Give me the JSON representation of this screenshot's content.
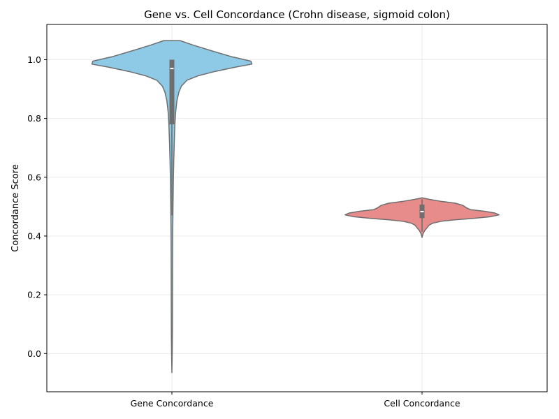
{
  "chart_data": {
    "type": "violin",
    "title": "Gene vs. Cell Concordance (Crohn disease, sigmoid colon)",
    "xlabel": "",
    "ylabel": "Concordance Score",
    "categories": [
      "Gene Concordance",
      "Cell Concordance"
    ],
    "ylim": [
      -0.13,
      1.12
    ],
    "yticks": [
      0.0,
      0.2,
      0.4,
      0.6,
      0.8,
      1.0
    ],
    "ytick_labels": [
      "0.0",
      "0.2",
      "0.4",
      "0.6",
      "0.8",
      "1.0"
    ],
    "grid": true,
    "series": [
      {
        "category": "Gene Concordance",
        "color": "#8ecae6",
        "kde_min": -0.065,
        "kde_max": 1.065,
        "median": 0.97,
        "q1": 0.78,
        "q3": 1.0,
        "whisker_low": 0.47,
        "whisker_high": 1.0,
        "density_profile": [
          [
            1.065,
            0.08
          ],
          [
            1.05,
            0.21
          ],
          [
            1.03,
            0.4
          ],
          [
            1.01,
            0.6
          ],
          [
            0.995,
            0.79
          ],
          [
            0.985,
            0.8
          ],
          [
            0.975,
            0.64
          ],
          [
            0.96,
            0.43
          ],
          [
            0.945,
            0.26
          ],
          [
            0.93,
            0.15
          ],
          [
            0.91,
            0.095
          ],
          [
            0.89,
            0.07
          ],
          [
            0.86,
            0.05
          ],
          [
            0.82,
            0.037
          ],
          [
            0.78,
            0.03
          ],
          [
            0.72,
            0.024
          ],
          [
            0.66,
            0.019
          ],
          [
            0.6,
            0.015
          ],
          [
            0.5,
            0.011
          ],
          [
            0.4,
            0.008
          ],
          [
            0.3,
            0.007
          ],
          [
            0.2,
            0.0065
          ],
          [
            0.1,
            0.0058
          ],
          [
            0.04,
            0.0045
          ],
          [
            0.0,
            0.0032
          ],
          [
            -0.03,
            0.0018
          ],
          [
            -0.065,
            0.0
          ]
        ]
      },
      {
        "category": "Cell Concordance",
        "color": "#e88b8b",
        "kde_min": 0.395,
        "kde_max": 0.53,
        "median": 0.483,
        "q1": 0.461,
        "q3": 0.507,
        "whisker_low": 0.415,
        "whisker_high": 0.525,
        "density_profile": [
          [
            0.53,
            0.0
          ],
          [
            0.525,
            0.07
          ],
          [
            0.518,
            0.19
          ],
          [
            0.512,
            0.33
          ],
          [
            0.508,
            0.37
          ],
          [
            0.504,
            0.41
          ],
          [
            0.497,
            0.44
          ],
          [
            0.49,
            0.48
          ],
          [
            0.484,
            0.63
          ],
          [
            0.478,
            0.73
          ],
          [
            0.472,
            0.77
          ],
          [
            0.466,
            0.69
          ],
          [
            0.46,
            0.51
          ],
          [
            0.455,
            0.32
          ],
          [
            0.45,
            0.19
          ],
          [
            0.444,
            0.11
          ],
          [
            0.437,
            0.07
          ],
          [
            0.428,
            0.05
          ],
          [
            0.42,
            0.03
          ],
          [
            0.41,
            0.013
          ],
          [
            0.402,
            0.005
          ],
          [
            0.395,
            0.0
          ]
        ]
      }
    ]
  }
}
